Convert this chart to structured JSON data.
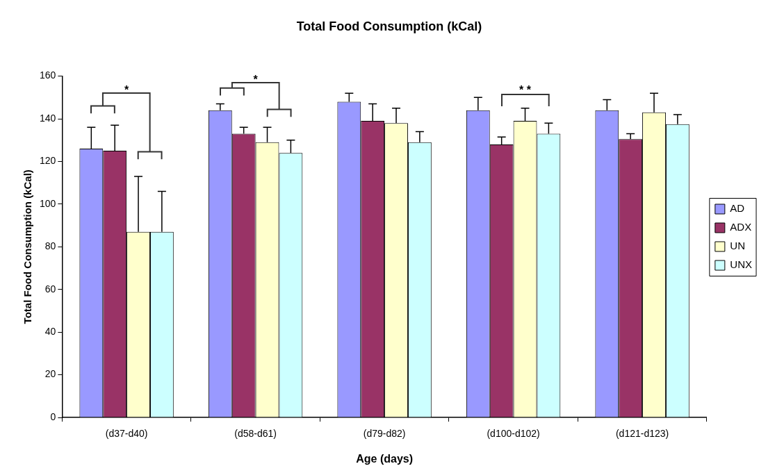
{
  "chart_data": {
    "type": "bar",
    "title": "Total Food Consumption (kCal)",
    "xlabel": "Age (days)",
    "ylabel": "Total Food Consumption (kCal)",
    "categories": [
      "(d37-d40)",
      "(d58-d61)",
      "(d79-d82)",
      "(d100-d102)",
      "(d121-d123)"
    ],
    "series": [
      {
        "name": "AD",
        "color": "#9999ff",
        "values": [
          126,
          144,
          148,
          144,
          144
        ],
        "errors": [
          [
            126,
            136
          ],
          [
            144,
            147
          ],
          [
            148,
            152
          ],
          [
            144,
            150
          ],
          [
            144,
            149
          ]
        ]
      },
      {
        "name": "ADX",
        "color": "#993366",
        "values": [
          125,
          133,
          139,
          128,
          130.5
        ],
        "errors": [
          [
            125,
            137
          ],
          [
            133,
            136
          ],
          [
            139,
            147
          ],
          [
            128,
            131.5
          ],
          [
            130.5,
            133
          ]
        ]
      },
      {
        "name": "UN",
        "color": "#ffffcc",
        "values": [
          87,
          129,
          138,
          139,
          143
        ],
        "errors": [
          [
            87,
            113
          ],
          [
            129,
            136
          ],
          [
            138,
            145
          ],
          [
            139,
            145
          ],
          [
            143,
            152
          ]
        ]
      },
      {
        "name": "UNX",
        "color": "#ccffff",
        "values": [
          87,
          124,
          129,
          133,
          137.5
        ],
        "errors": [
          [
            87,
            106
          ],
          [
            124,
            130
          ],
          [
            129,
            134
          ],
          [
            133,
            138
          ],
          [
            137.5,
            142
          ]
        ]
      }
    ],
    "ylim": [
      0,
      160
    ],
    "yticks": [
      0,
      20,
      40,
      60,
      80,
      100,
      120,
      140,
      160
    ],
    "grid": false,
    "legend": "right",
    "annotations": [
      "*",
      "*",
      "* *"
    ]
  }
}
